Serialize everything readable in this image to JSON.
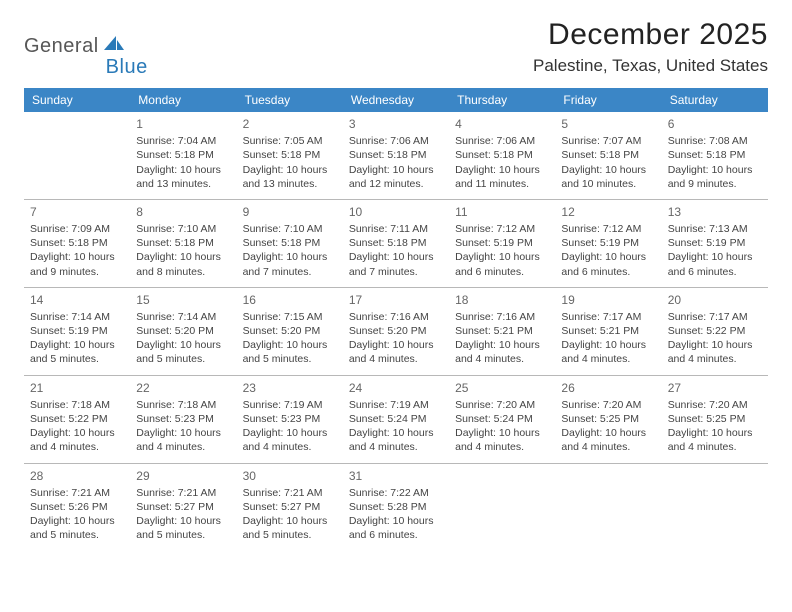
{
  "logo": {
    "general": "General",
    "blue": "Blue",
    "sail_color": "#2a7ab8",
    "general_color": "#575757",
    "blue_color": "#2a7ab8"
  },
  "header": {
    "title": "December 2025",
    "location": "Palestine, Texas, United States"
  },
  "weekdays": [
    "Sunday",
    "Monday",
    "Tuesday",
    "Wednesday",
    "Thursday",
    "Friday",
    "Saturday"
  ],
  "colors": {
    "header_bg": "#3b86c6",
    "header_fg": "#ffffff",
    "rule": "#b8b8b8",
    "text": "#444444",
    "daynum": "#666666",
    "background": "#ffffff"
  },
  "calendar": {
    "first_weekday_index": 1,
    "days": [
      {
        "n": 1,
        "sunrise": "7:04 AM",
        "sunset": "5:18 PM",
        "daylight": "10 hours and 13 minutes."
      },
      {
        "n": 2,
        "sunrise": "7:05 AM",
        "sunset": "5:18 PM",
        "daylight": "10 hours and 13 minutes."
      },
      {
        "n": 3,
        "sunrise": "7:06 AM",
        "sunset": "5:18 PM",
        "daylight": "10 hours and 12 minutes."
      },
      {
        "n": 4,
        "sunrise": "7:06 AM",
        "sunset": "5:18 PM",
        "daylight": "10 hours and 11 minutes."
      },
      {
        "n": 5,
        "sunrise": "7:07 AM",
        "sunset": "5:18 PM",
        "daylight": "10 hours and 10 minutes."
      },
      {
        "n": 6,
        "sunrise": "7:08 AM",
        "sunset": "5:18 PM",
        "daylight": "10 hours and 9 minutes."
      },
      {
        "n": 7,
        "sunrise": "7:09 AM",
        "sunset": "5:18 PM",
        "daylight": "10 hours and 9 minutes."
      },
      {
        "n": 8,
        "sunrise": "7:10 AM",
        "sunset": "5:18 PM",
        "daylight": "10 hours and 8 minutes."
      },
      {
        "n": 9,
        "sunrise": "7:10 AM",
        "sunset": "5:18 PM",
        "daylight": "10 hours and 7 minutes."
      },
      {
        "n": 10,
        "sunrise": "7:11 AM",
        "sunset": "5:18 PM",
        "daylight": "10 hours and 7 minutes."
      },
      {
        "n": 11,
        "sunrise": "7:12 AM",
        "sunset": "5:19 PM",
        "daylight": "10 hours and 6 minutes."
      },
      {
        "n": 12,
        "sunrise": "7:12 AM",
        "sunset": "5:19 PM",
        "daylight": "10 hours and 6 minutes."
      },
      {
        "n": 13,
        "sunrise": "7:13 AM",
        "sunset": "5:19 PM",
        "daylight": "10 hours and 6 minutes."
      },
      {
        "n": 14,
        "sunrise": "7:14 AM",
        "sunset": "5:19 PM",
        "daylight": "10 hours and 5 minutes."
      },
      {
        "n": 15,
        "sunrise": "7:14 AM",
        "sunset": "5:20 PM",
        "daylight": "10 hours and 5 minutes."
      },
      {
        "n": 16,
        "sunrise": "7:15 AM",
        "sunset": "5:20 PM",
        "daylight": "10 hours and 5 minutes."
      },
      {
        "n": 17,
        "sunrise": "7:16 AM",
        "sunset": "5:20 PM",
        "daylight": "10 hours and 4 minutes."
      },
      {
        "n": 18,
        "sunrise": "7:16 AM",
        "sunset": "5:21 PM",
        "daylight": "10 hours and 4 minutes."
      },
      {
        "n": 19,
        "sunrise": "7:17 AM",
        "sunset": "5:21 PM",
        "daylight": "10 hours and 4 minutes."
      },
      {
        "n": 20,
        "sunrise": "7:17 AM",
        "sunset": "5:22 PM",
        "daylight": "10 hours and 4 minutes."
      },
      {
        "n": 21,
        "sunrise": "7:18 AM",
        "sunset": "5:22 PM",
        "daylight": "10 hours and 4 minutes."
      },
      {
        "n": 22,
        "sunrise": "7:18 AM",
        "sunset": "5:23 PM",
        "daylight": "10 hours and 4 minutes."
      },
      {
        "n": 23,
        "sunrise": "7:19 AM",
        "sunset": "5:23 PM",
        "daylight": "10 hours and 4 minutes."
      },
      {
        "n": 24,
        "sunrise": "7:19 AM",
        "sunset": "5:24 PM",
        "daylight": "10 hours and 4 minutes."
      },
      {
        "n": 25,
        "sunrise": "7:20 AM",
        "sunset": "5:24 PM",
        "daylight": "10 hours and 4 minutes."
      },
      {
        "n": 26,
        "sunrise": "7:20 AM",
        "sunset": "5:25 PM",
        "daylight": "10 hours and 4 minutes."
      },
      {
        "n": 27,
        "sunrise": "7:20 AM",
        "sunset": "5:25 PM",
        "daylight": "10 hours and 4 minutes."
      },
      {
        "n": 28,
        "sunrise": "7:21 AM",
        "sunset": "5:26 PM",
        "daylight": "10 hours and 5 minutes."
      },
      {
        "n": 29,
        "sunrise": "7:21 AM",
        "sunset": "5:27 PM",
        "daylight": "10 hours and 5 minutes."
      },
      {
        "n": 30,
        "sunrise": "7:21 AM",
        "sunset": "5:27 PM",
        "daylight": "10 hours and 5 minutes."
      },
      {
        "n": 31,
        "sunrise": "7:22 AM",
        "sunset": "5:28 PM",
        "daylight": "10 hours and 6 minutes."
      }
    ]
  },
  "labels": {
    "sunrise": "Sunrise:",
    "sunset": "Sunset:",
    "daylight": "Daylight:"
  }
}
